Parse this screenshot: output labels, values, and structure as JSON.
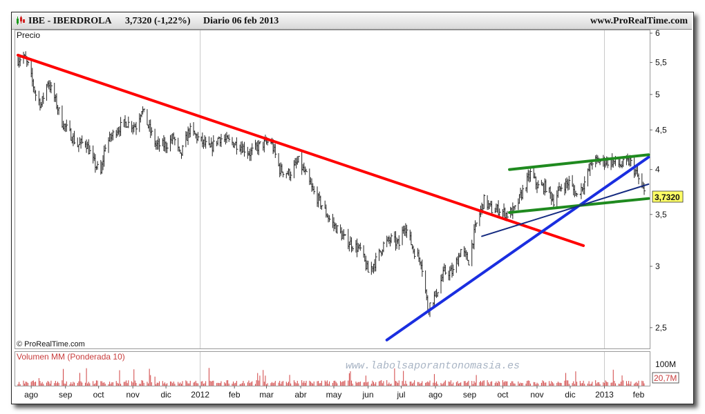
{
  "header": {
    "symbol": "IBE - IBERDROLA",
    "quote": "3,7320 (-1,22%)",
    "period_date": "Diario  06 feb 2013",
    "site": "www.ProRealTime.com"
  },
  "labels": {
    "price_panel": "Precio",
    "copyright": "© ProRealTime.com",
    "volume_panel": "Volumen MM (Ponderada 10)",
    "watermark": "www.labolsaporantonomasia.es",
    "last_price": "3,7320",
    "last_volume": "20,7M",
    "volume_tick": "100M"
  },
  "colors": {
    "downtrend_line": "#ff0000",
    "uptrend_line": "#1a2ee0",
    "channel_line": "#1f8a1f",
    "support_line": "#142a80",
    "price_bar": "#222222",
    "last_price_box": "#ffff66",
    "volume_bars": "#d04040"
  },
  "chart_data": {
    "type": "ohlc",
    "price_axis": {
      "scale": "log",
      "ylim": [
        2.35,
        6.05
      ],
      "ticks": [
        2.5,
        3,
        3.5,
        4,
        4.5,
        5,
        5.5,
        6
      ],
      "tick_labels": [
        "2,5",
        "3",
        "3,5",
        "4",
        "4,5",
        "5",
        "5,5",
        "6"
      ]
    },
    "x_ticks": [
      "ago",
      "sep",
      "oct",
      "nov",
      "dic",
      "2012",
      "feb",
      "mar",
      "abr",
      "may",
      "jun",
      "jul",
      "ago",
      "sep",
      "oct",
      "nov",
      "dic",
      "2013",
      "feb"
    ],
    "x_range": [
      "2011-07-20",
      "2013-02-06"
    ],
    "gridlines_at": [
      "2012",
      "2013"
    ],
    "price_path": [
      [
        "2011-07-20",
        5.55
      ],
      [
        "2011-07-25",
        5.6
      ],
      [
        "2011-07-29",
        5.45
      ],
      [
        "2011-08-05",
        5.0
      ],
      [
        "2011-08-10",
        4.85
      ],
      [
        "2011-08-16",
        5.2
      ],
      [
        "2011-08-22",
        4.95
      ],
      [
        "2011-08-29",
        4.6
      ],
      [
        "2011-09-05",
        4.45
      ],
      [
        "2011-09-12",
        4.3
      ],
      [
        "2011-09-19",
        4.35
      ],
      [
        "2011-09-26",
        4.1
      ],
      [
        "2011-10-03",
        3.95
      ],
      [
        "2011-10-07",
        4.3
      ],
      [
        "2011-10-17",
        4.5
      ],
      [
        "2011-10-26",
        4.6
      ],
      [
        "2011-11-04",
        4.55
      ],
      [
        "2011-11-09",
        4.8
      ],
      [
        "2011-11-15",
        4.55
      ],
      [
        "2011-11-22",
        4.3
      ],
      [
        "2011-12-01",
        4.3
      ],
      [
        "2011-12-08",
        4.4
      ],
      [
        "2011-12-14",
        4.15
      ],
      [
        "2011-12-22",
        4.5
      ],
      [
        "2012-01-02",
        4.35
      ],
      [
        "2012-01-10",
        4.25
      ],
      [
        "2012-01-18",
        4.4
      ],
      [
        "2012-01-26",
        4.35
      ],
      [
        "2012-02-06",
        4.3
      ],
      [
        "2012-02-15",
        4.2
      ],
      [
        "2012-02-24",
        4.3
      ],
      [
        "2012-03-05",
        4.35
      ],
      [
        "2012-03-13",
        4.0
      ],
      [
        "2012-03-22",
        3.95
      ],
      [
        "2012-03-30",
        4.1
      ],
      [
        "2012-04-05",
        3.95
      ],
      [
        "2012-04-12",
        3.75
      ],
      [
        "2012-04-20",
        3.6
      ],
      [
        "2012-04-27",
        3.45
      ],
      [
        "2012-05-04",
        3.35
      ],
      [
        "2012-05-11",
        3.25
      ],
      [
        "2012-05-18",
        3.2
      ],
      [
        "2012-05-25",
        3.15
      ],
      [
        "2012-06-01",
        2.95
      ],
      [
        "2012-06-08",
        3.05
      ],
      [
        "2012-06-15",
        3.2
      ],
      [
        "2012-06-22",
        3.25
      ],
      [
        "2012-06-29",
        3.2
      ],
      [
        "2012-07-04",
        3.4
      ],
      [
        "2012-07-12",
        3.15
      ],
      [
        "2012-07-19",
        3.05
      ],
      [
        "2012-07-25",
        2.65
      ],
      [
        "2012-08-01",
        2.75
      ],
      [
        "2012-08-09",
        2.95
      ],
      [
        "2012-08-17",
        2.95
      ],
      [
        "2012-08-24",
        3.15
      ],
      [
        "2012-08-31",
        3.05
      ],
      [
        "2012-09-07",
        3.4
      ],
      [
        "2012-09-14",
        3.65
      ],
      [
        "2012-09-21",
        3.55
      ],
      [
        "2012-09-28",
        3.55
      ],
      [
        "2012-10-05",
        3.5
      ],
      [
        "2012-10-12",
        3.55
      ],
      [
        "2012-10-19",
        3.75
      ],
      [
        "2012-10-26",
        3.95
      ],
      [
        "2012-11-02",
        3.8
      ],
      [
        "2012-11-09",
        3.8
      ],
      [
        "2012-11-16",
        3.65
      ],
      [
        "2012-11-23",
        3.8
      ],
      [
        "2012-11-30",
        3.85
      ],
      [
        "2012-12-07",
        3.7
      ],
      [
        "2012-12-14",
        3.85
      ],
      [
        "2012-12-21",
        4.1
      ],
      [
        "2012-12-31",
        4.1
      ],
      [
        "2013-01-08",
        4.1
      ],
      [
        "2013-01-16",
        4.05
      ],
      [
        "2013-01-24",
        4.1
      ],
      [
        "2013-01-30",
        3.95
      ],
      [
        "2013-02-04",
        3.78
      ],
      [
        "2013-02-06",
        3.732
      ]
    ],
    "trendlines": [
      {
        "kind": "downtrend",
        "color_key": "downtrend_line",
        "width": 4,
        "from": [
          "2011-07-20",
          5.62
        ],
        "to": [
          "2012-12-13",
          3.19
        ]
      },
      {
        "kind": "uptrend",
        "color_key": "uptrend_line",
        "width": 4,
        "from": [
          "2012-06-18",
          2.41
        ],
        "to": [
          "2013-02-10",
          4.15
        ]
      },
      {
        "kind": "channel-top",
        "color_key": "channel_line",
        "width": 4,
        "from": [
          "2012-10-07",
          4.0
        ],
        "to": [
          "2013-02-10",
          4.18
        ]
      },
      {
        "kind": "channel-bottom",
        "color_key": "channel_line",
        "width": 4,
        "from": [
          "2012-10-07",
          3.52
        ],
        "to": [
          "2013-02-10",
          3.67
        ]
      },
      {
        "kind": "support",
        "color_key": "support_line",
        "width": 2,
        "from": [
          "2012-09-12",
          3.28
        ],
        "to": [
          "2013-02-10",
          3.83
        ]
      }
    ],
    "last_price": 3.732,
    "volume": {
      "unit": "M",
      "ylim": [
        0,
        100
      ],
      "tick": 100,
      "last": 20.7
    }
  }
}
